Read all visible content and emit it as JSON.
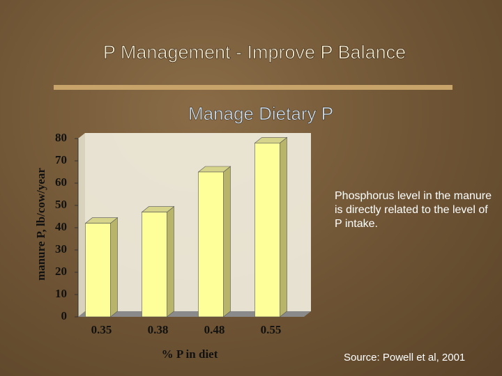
{
  "chart_data": {
    "type": "bar3d",
    "title": "P Management - Improve P Balance",
    "subtitle": "Manage Dietary P",
    "y_label": "manure P, lb/cow/year",
    "x_label": "% P in diet",
    "annotation": "Phosphorus level in the manure is directly related to the level of P intake.",
    "source": "Source: Powell et al, 2001",
    "categories": [
      "0.35",
      "0.38",
      "0.48",
      "0.55"
    ],
    "values": [
      42,
      47,
      65,
      78
    ],
    "color": "#ffff99",
    "ylim": [
      0,
      80
    ],
    "yticks": [
      0,
      10,
      20,
      30,
      40,
      50,
      60,
      70,
      80
    ],
    "grid": false
  }
}
